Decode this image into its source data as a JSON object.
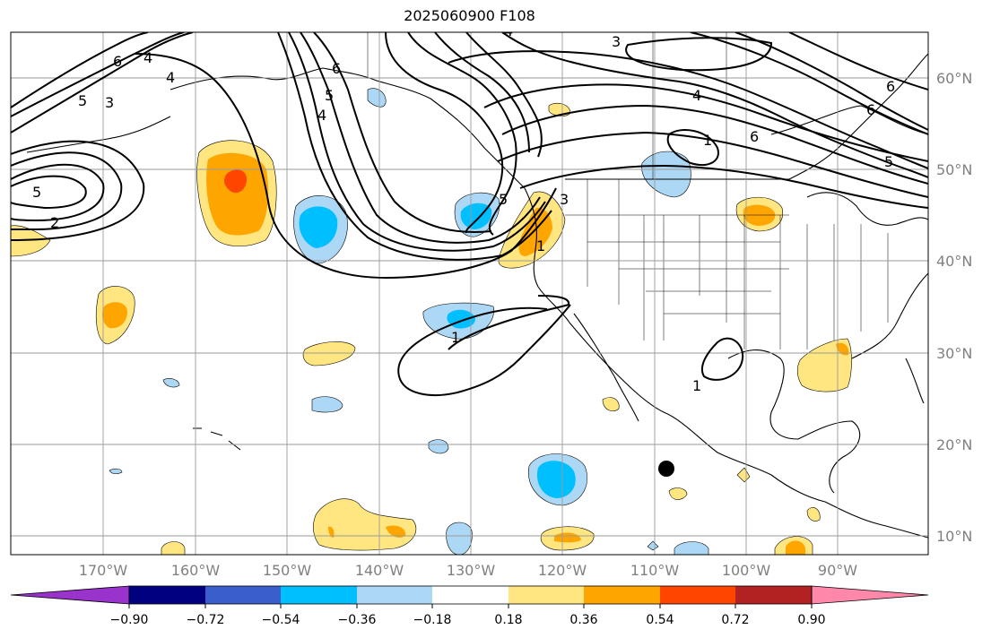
{
  "title": "2025060900 F108",
  "colors": {
    "neg_090": "#9933cc",
    "neg_072": "#000080",
    "neg_054": "#3a5fcd",
    "neg_036": "#00bfff",
    "neg_018": "#add8f5",
    "zero": "#ffffff",
    "pos_018": "#ffe680",
    "pos_036": "#ffa500",
    "pos_054": "#ff4500",
    "pos_072": "#b22222",
    "pos_090": "#ff88aa"
  },
  "longitude_labels": [
    "170°W",
    "160°W",
    "150°W",
    "140°W",
    "130°W",
    "120°W",
    "110°W",
    "100°W",
    "90°W"
  ],
  "latitude_labels": [
    "60°N",
    "50°N",
    "40°N",
    "30°N",
    "20°N",
    "10°N"
  ],
  "colorbar": {
    "ticks": [
      "−0.90",
      "−0.72",
      "−0.54",
      "−0.36",
      "−0.18",
      "0.18",
      "0.36",
      "0.54",
      "0.72",
      "0.90"
    ],
    "extend": "both"
  },
  "contour_labels": [
    {
      "text": "6"
    },
    {
      "text": "4"
    },
    {
      "text": "3"
    },
    {
      "text": "5"
    },
    {
      "text": "4"
    },
    {
      "text": "5"
    },
    {
      "text": "2"
    },
    {
      "text": "6"
    },
    {
      "text": "5"
    },
    {
      "text": "4"
    },
    {
      "text": "3"
    },
    {
      "text": "4"
    },
    {
      "text": "1"
    },
    {
      "text": "6"
    },
    {
      "text": "6"
    },
    {
      "text": "6"
    },
    {
      "text": "5"
    },
    {
      "text": "5"
    },
    {
      "text": "3"
    },
    {
      "text": "1"
    },
    {
      "text": "1"
    },
    {
      "text": "1"
    },
    {
      "text": "4"
    }
  ],
  "marker": {
    "name": "storm-center-dot"
  }
}
